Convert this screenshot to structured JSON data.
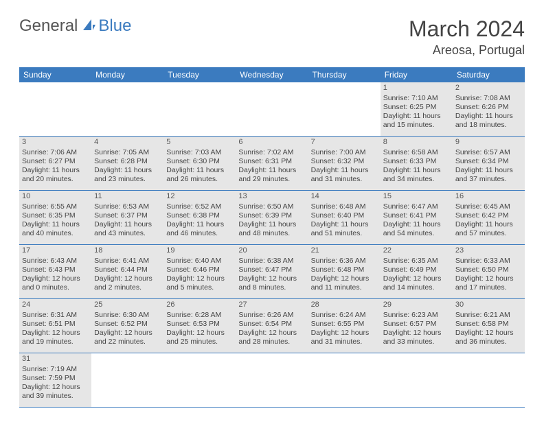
{
  "logo": {
    "part1": "General",
    "part2": "Blue",
    "sail_color": "#3b7bbf"
  },
  "title": "March 2024",
  "location": "Areosa, Portugal",
  "colors": {
    "header_bg": "#3b7bbf",
    "header_text": "#ffffff",
    "grey_bg": "#e6e6e6",
    "row_border": "#3b7bbf",
    "text": "#444444"
  },
  "day_headers": [
    "Sunday",
    "Monday",
    "Tuesday",
    "Wednesday",
    "Thursday",
    "Friday",
    "Saturday"
  ],
  "weeks": [
    [
      {
        "blank": true
      },
      {
        "blank": true
      },
      {
        "blank": true
      },
      {
        "blank": true
      },
      {
        "blank": true
      },
      {
        "num": "1",
        "grey": true,
        "sunrise": "Sunrise: 7:10 AM",
        "sunset": "Sunset: 6:25 PM",
        "day1": "Daylight: 11 hours",
        "day2": "and 15 minutes."
      },
      {
        "num": "2",
        "grey": true,
        "sunrise": "Sunrise: 7:08 AM",
        "sunset": "Sunset: 6:26 PM",
        "day1": "Daylight: 11 hours",
        "day2": "and 18 minutes."
      }
    ],
    [
      {
        "num": "3",
        "grey": true,
        "sunrise": "Sunrise: 7:06 AM",
        "sunset": "Sunset: 6:27 PM",
        "day1": "Daylight: 11 hours",
        "day2": "and 20 minutes."
      },
      {
        "num": "4",
        "grey": true,
        "sunrise": "Sunrise: 7:05 AM",
        "sunset": "Sunset: 6:28 PM",
        "day1": "Daylight: 11 hours",
        "day2": "and 23 minutes."
      },
      {
        "num": "5",
        "grey": true,
        "sunrise": "Sunrise: 7:03 AM",
        "sunset": "Sunset: 6:30 PM",
        "day1": "Daylight: 11 hours",
        "day2": "and 26 minutes."
      },
      {
        "num": "6",
        "grey": true,
        "sunrise": "Sunrise: 7:02 AM",
        "sunset": "Sunset: 6:31 PM",
        "day1": "Daylight: 11 hours",
        "day2": "and 29 minutes."
      },
      {
        "num": "7",
        "grey": true,
        "sunrise": "Sunrise: 7:00 AM",
        "sunset": "Sunset: 6:32 PM",
        "day1": "Daylight: 11 hours",
        "day2": "and 31 minutes."
      },
      {
        "num": "8",
        "grey": true,
        "sunrise": "Sunrise: 6:58 AM",
        "sunset": "Sunset: 6:33 PM",
        "day1": "Daylight: 11 hours",
        "day2": "and 34 minutes."
      },
      {
        "num": "9",
        "grey": true,
        "sunrise": "Sunrise: 6:57 AM",
        "sunset": "Sunset: 6:34 PM",
        "day1": "Daylight: 11 hours",
        "day2": "and 37 minutes."
      }
    ],
    [
      {
        "num": "10",
        "grey": true,
        "sunrise": "Sunrise: 6:55 AM",
        "sunset": "Sunset: 6:35 PM",
        "day1": "Daylight: 11 hours",
        "day2": "and 40 minutes."
      },
      {
        "num": "11",
        "grey": true,
        "sunrise": "Sunrise: 6:53 AM",
        "sunset": "Sunset: 6:37 PM",
        "day1": "Daylight: 11 hours",
        "day2": "and 43 minutes."
      },
      {
        "num": "12",
        "grey": true,
        "sunrise": "Sunrise: 6:52 AM",
        "sunset": "Sunset: 6:38 PM",
        "day1": "Daylight: 11 hours",
        "day2": "and 46 minutes."
      },
      {
        "num": "13",
        "grey": true,
        "sunrise": "Sunrise: 6:50 AM",
        "sunset": "Sunset: 6:39 PM",
        "day1": "Daylight: 11 hours",
        "day2": "and 48 minutes."
      },
      {
        "num": "14",
        "grey": true,
        "sunrise": "Sunrise: 6:48 AM",
        "sunset": "Sunset: 6:40 PM",
        "day1": "Daylight: 11 hours",
        "day2": "and 51 minutes."
      },
      {
        "num": "15",
        "grey": true,
        "sunrise": "Sunrise: 6:47 AM",
        "sunset": "Sunset: 6:41 PM",
        "day1": "Daylight: 11 hours",
        "day2": "and 54 minutes."
      },
      {
        "num": "16",
        "grey": true,
        "sunrise": "Sunrise: 6:45 AM",
        "sunset": "Sunset: 6:42 PM",
        "day1": "Daylight: 11 hours",
        "day2": "and 57 minutes."
      }
    ],
    [
      {
        "num": "17",
        "grey": true,
        "sunrise": "Sunrise: 6:43 AM",
        "sunset": "Sunset: 6:43 PM",
        "day1": "Daylight: 12 hours",
        "day2": "and 0 minutes."
      },
      {
        "num": "18",
        "grey": true,
        "sunrise": "Sunrise: 6:41 AM",
        "sunset": "Sunset: 6:44 PM",
        "day1": "Daylight: 12 hours",
        "day2": "and 2 minutes."
      },
      {
        "num": "19",
        "grey": true,
        "sunrise": "Sunrise: 6:40 AM",
        "sunset": "Sunset: 6:46 PM",
        "day1": "Daylight: 12 hours",
        "day2": "and 5 minutes."
      },
      {
        "num": "20",
        "grey": true,
        "sunrise": "Sunrise: 6:38 AM",
        "sunset": "Sunset: 6:47 PM",
        "day1": "Daylight: 12 hours",
        "day2": "and 8 minutes."
      },
      {
        "num": "21",
        "grey": true,
        "sunrise": "Sunrise: 6:36 AM",
        "sunset": "Sunset: 6:48 PM",
        "day1": "Daylight: 12 hours",
        "day2": "and 11 minutes."
      },
      {
        "num": "22",
        "grey": true,
        "sunrise": "Sunrise: 6:35 AM",
        "sunset": "Sunset: 6:49 PM",
        "day1": "Daylight: 12 hours",
        "day2": "and 14 minutes."
      },
      {
        "num": "23",
        "grey": true,
        "sunrise": "Sunrise: 6:33 AM",
        "sunset": "Sunset: 6:50 PM",
        "day1": "Daylight: 12 hours",
        "day2": "and 17 minutes."
      }
    ],
    [
      {
        "num": "24",
        "grey": true,
        "sunrise": "Sunrise: 6:31 AM",
        "sunset": "Sunset: 6:51 PM",
        "day1": "Daylight: 12 hours",
        "day2": "and 19 minutes."
      },
      {
        "num": "25",
        "grey": true,
        "sunrise": "Sunrise: 6:30 AM",
        "sunset": "Sunset: 6:52 PM",
        "day1": "Daylight: 12 hours",
        "day2": "and 22 minutes."
      },
      {
        "num": "26",
        "grey": true,
        "sunrise": "Sunrise: 6:28 AM",
        "sunset": "Sunset: 6:53 PM",
        "day1": "Daylight: 12 hours",
        "day2": "and 25 minutes."
      },
      {
        "num": "27",
        "grey": true,
        "sunrise": "Sunrise: 6:26 AM",
        "sunset": "Sunset: 6:54 PM",
        "day1": "Daylight: 12 hours",
        "day2": "and 28 minutes."
      },
      {
        "num": "28",
        "grey": true,
        "sunrise": "Sunrise: 6:24 AM",
        "sunset": "Sunset: 6:55 PM",
        "day1": "Daylight: 12 hours",
        "day2": "and 31 minutes."
      },
      {
        "num": "29",
        "grey": true,
        "sunrise": "Sunrise: 6:23 AM",
        "sunset": "Sunset: 6:57 PM",
        "day1": "Daylight: 12 hours",
        "day2": "and 33 minutes."
      },
      {
        "num": "30",
        "grey": true,
        "sunrise": "Sunrise: 6:21 AM",
        "sunset": "Sunset: 6:58 PM",
        "day1": "Daylight: 12 hours",
        "day2": "and 36 minutes."
      }
    ],
    [
      {
        "num": "31",
        "grey": true,
        "sunrise": "Sunrise: 7:19 AM",
        "sunset": "Sunset: 7:59 PM",
        "day1": "Daylight: 12 hours",
        "day2": "and 39 minutes."
      },
      {
        "blank": true
      },
      {
        "blank": true
      },
      {
        "blank": true
      },
      {
        "blank": true
      },
      {
        "blank": true
      },
      {
        "blank": true
      }
    ]
  ]
}
